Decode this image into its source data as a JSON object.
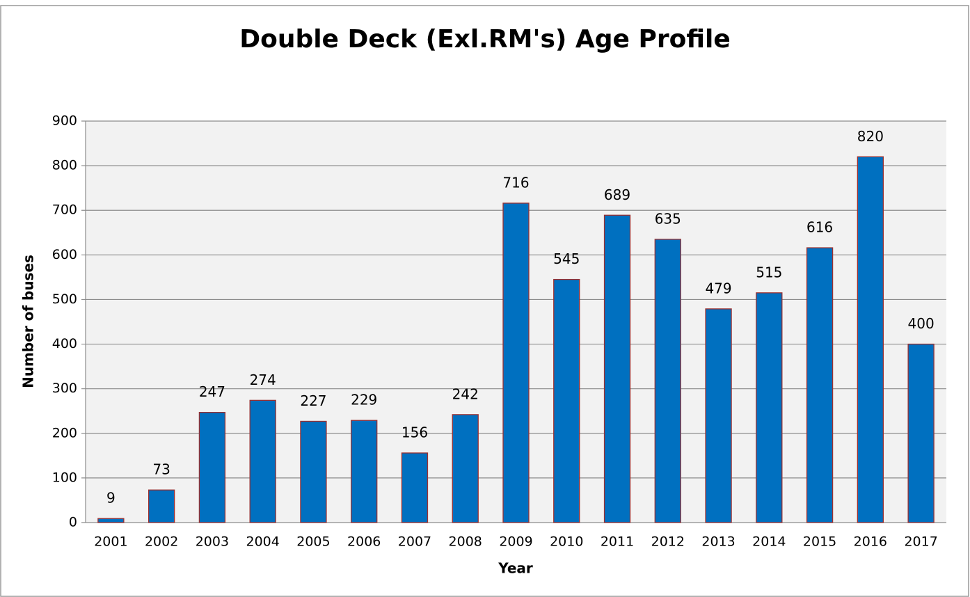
{
  "chart_data": {
    "type": "bar",
    "title": "Double Deck (Exl.RM's) Age Profile",
    "x_label": "Year",
    "y_label": "Number of buses",
    "categories": [
      "2001",
      "2002",
      "2003",
      "2004",
      "2005",
      "2006",
      "2007",
      "2008",
      "2009",
      "2010",
      "2011",
      "2012",
      "2013",
      "2014",
      "2015",
      "2016",
      "2017"
    ],
    "values": [
      9,
      73,
      247,
      274,
      227,
      229,
      156,
      242,
      716,
      545,
      689,
      635,
      479,
      515,
      616,
      820,
      400
    ],
    "color": "#0070c0",
    "ylim": [
      0,
      900
    ],
    "yticks": [
      0,
      100,
      200,
      300,
      400,
      500,
      600,
      700,
      800,
      900
    ],
    "grid": true
  }
}
